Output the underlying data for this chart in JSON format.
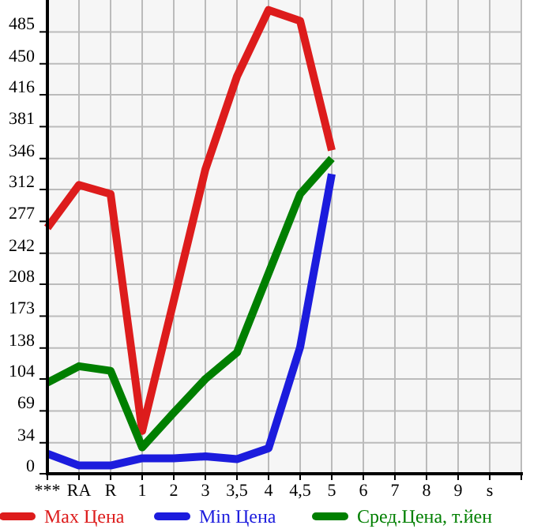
{
  "chart_data": {
    "type": "line",
    "categories": [
      "***",
      "RA",
      "R",
      "1",
      "2",
      "3",
      "3,5",
      "4",
      "4,5",
      "5",
      "6",
      "7",
      "8",
      "9",
      "s",
      null
    ],
    "series": [
      {
        "name": "Max Цена",
        "color": "#dd1c1c",
        "values": [
          270,
          317,
          307,
          47,
          190,
          334,
          436,
          509,
          497,
          355,
          null,
          null,
          null,
          null,
          null,
          null
        ]
      },
      {
        "name": "Min Цена",
        "color": "#1c1cdd",
        "values": [
          22,
          9,
          9,
          17,
          17,
          19,
          16,
          28,
          139,
          329,
          null,
          null,
          null,
          null,
          null,
          null
        ]
      },
      {
        "name": "Сред.Цена, т.йен",
        "color": "#007f00",
        "values": [
          100,
          118,
          113,
          29,
          67,
          104,
          133,
          220,
          307,
          346,
          null,
          null,
          null,
          null,
          null,
          null
        ]
      }
    ],
    "ylim": [
      0,
      520
    ],
    "yticks": [
      0,
      34,
      69,
      104,
      138,
      173,
      208,
      242,
      277,
      312,
      346,
      381,
      416,
      450,
      485
    ],
    "grid": true,
    "legend": "bottom",
    "marker": "none",
    "line_style": "solid"
  }
}
